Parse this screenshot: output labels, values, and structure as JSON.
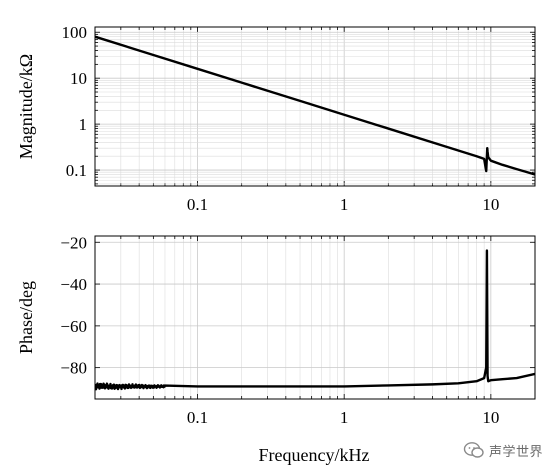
{
  "chart_data": [
    {
      "type": "line",
      "xlabel": "",
      "ylabel": "Magnitude/kΩ",
      "xscale": "log",
      "yscale": "log",
      "xlim": [
        0.02,
        20
      ],
      "ylim": [
        0.045,
        130
      ],
      "xticks": [
        0.1,
        1,
        10
      ],
      "xtick_labels": [
        "0.1",
        "1",
        "10"
      ],
      "yticks": [
        0.1,
        1,
        10,
        100
      ],
      "ytick_labels": [
        "0.1",
        "1",
        "10",
        "100"
      ],
      "grid": true,
      "series": [
        {
          "x": [
            0.02,
            0.05,
            0.1,
            0.2,
            0.5,
            1,
            2,
            5,
            8,
            9,
            9.3,
            9.45,
            9.5,
            9.6,
            10,
            12,
            15,
            20
          ],
          "y": [
            80,
            32,
            16,
            8,
            3.2,
            1.6,
            0.8,
            0.32,
            0.2,
            0.175,
            0.095,
            0.3,
            0.25,
            0.19,
            0.16,
            0.13,
            0.105,
            0.08
          ]
        }
      ]
    },
    {
      "type": "line",
      "xlabel": "Frequency/kHz",
      "ylabel": "Phase/deg",
      "xscale": "log",
      "yscale": "linear",
      "xlim": [
        0.02,
        20
      ],
      "ylim": [
        -95,
        -17
      ],
      "xticks": [
        0.1,
        1,
        10
      ],
      "xtick_labels": [
        "0.1",
        "1",
        "10"
      ],
      "yticks": [
        -80,
        -60,
        -40,
        -20
      ],
      "ytick_labels": [
        "−80",
        "−60",
        "−40",
        "−20"
      ],
      "grid": true,
      "series": [
        {
          "x": [
            0.02,
            0.03,
            0.05,
            0.1,
            0.2,
            0.5,
            1,
            2,
            4,
            6,
            8,
            9,
            9.3,
            9.4,
            9.5,
            9.6,
            10,
            12,
            15,
            20
          ],
          "y": [
            -89,
            -89,
            -89,
            -89,
            -89,
            -89,
            -89,
            -88.5,
            -88,
            -87.5,
            -86.5,
            -85,
            -80,
            -24,
            -84,
            -86.5,
            -86,
            -85.5,
            -85,
            -83
          ]
        }
      ],
      "noise_band": {
        "from": 0.02,
        "to": 0.06,
        "amplitude": 1.6
      }
    }
  ],
  "watermark": {
    "text": "声学世界"
  }
}
